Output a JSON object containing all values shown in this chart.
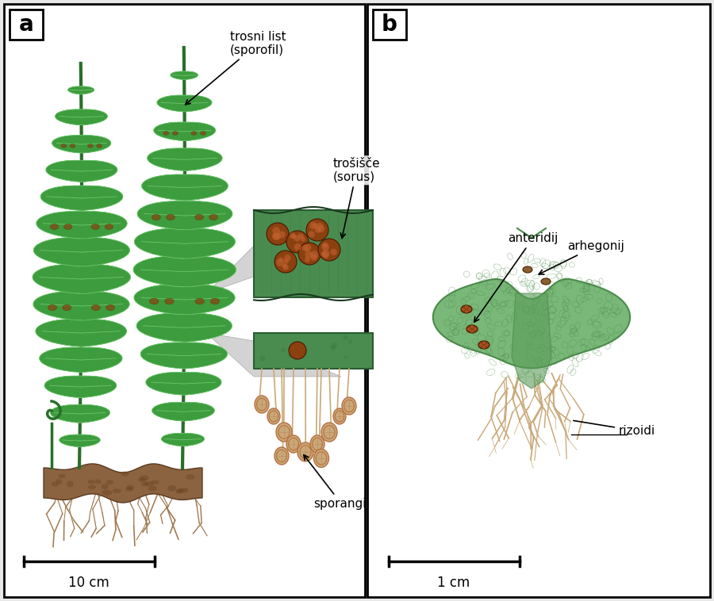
{
  "fig_width": 9.0,
  "fig_height": 7.58,
  "dpi": 100,
  "bg_color": "#e8e8e8",
  "panel_bg": "#ffffff",
  "border_color": "#000000",
  "label_a": "a",
  "label_b": "b",
  "label_fontsize": 20,
  "annotation_fontsize": 11,
  "scale_fontsize": 12,
  "scale_a": "10 cm",
  "scale_b": "1 cm",
  "green_main": "#3d9c3d",
  "green_light": "#6ec66e",
  "green_pale": "#a8d8a8",
  "green_dark": "#2a6e2a",
  "green_proto": "#7ab87a",
  "green_proto_edge": "#4a8a4a",
  "brown_rhiz": "#8b6340",
  "brown_root": "#a07850",
  "brown_light": "#c9a878",
  "brown_spor": "#b87040",
  "sorus_brown": "#8b4010",
  "gray_tri": "#c8c8c8",
  "ann_fontsize": 11
}
